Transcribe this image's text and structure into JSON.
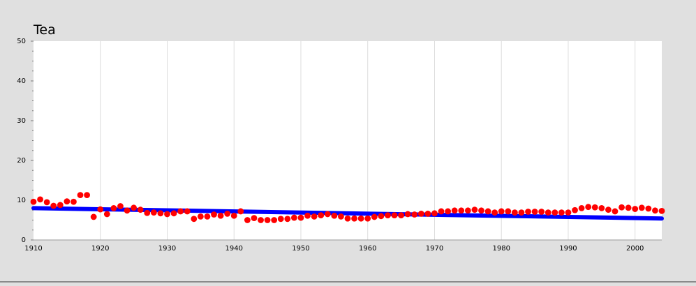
{
  "chart_data": {
    "type": "scatter",
    "title": "Tea",
    "xlabel": "",
    "ylabel": "",
    "xlim": [
      1910,
      2004
    ],
    "ylim": [
      0,
      50
    ],
    "x_ticks": [
      1910,
      1920,
      1930,
      1940,
      1950,
      1960,
      1970,
      1980,
      1990,
      2000
    ],
    "y_ticks": [
      0,
      10,
      20,
      30,
      40,
      50
    ],
    "grid": "vertical",
    "legend": "none",
    "colors": {
      "points": "#ff0000",
      "trend": "#0000ff",
      "plot_bg": "#ffffff",
      "page_bg": "#e0e0e0",
      "grid": "#dcdcdc"
    },
    "series": [
      {
        "kind": "points",
        "x": [
          1910,
          1911,
          1912,
          1913,
          1914,
          1915,
          1916,
          1917,
          1918,
          1919,
          1920,
          1921,
          1922,
          1923,
          1924,
          1925,
          1926,
          1927,
          1928,
          1929,
          1930,
          1931,
          1932,
          1933,
          1934,
          1935,
          1936,
          1937,
          1938,
          1939,
          1940,
          1941,
          1942,
          1943,
          1944,
          1945,
          1946,
          1947,
          1948,
          1949,
          1950,
          1951,
          1952,
          1953,
          1954,
          1955,
          1956,
          1957,
          1958,
          1959,
          1960,
          1961,
          1962,
          1963,
          1964,
          1965,
          1966,
          1967,
          1968,
          1969,
          1970,
          1971,
          1972,
          1973,
          1974,
          1975,
          1976,
          1977,
          1978,
          1979,
          1980,
          1981,
          1982,
          1983,
          1984,
          1985,
          1986,
          1987,
          1988,
          1989,
          1990,
          1991,
          1992,
          1993,
          1994,
          1995,
          1996,
          1997,
          1998,
          1999,
          2000,
          2001,
          2002,
          2003,
          2004
        ],
        "y": [
          9.6,
          10.2,
          9.5,
          8.6,
          8.8,
          9.7,
          9.6,
          11.3,
          11.3,
          5.8,
          7.7,
          6.5,
          8.0,
          8.5,
          7.4,
          8.1,
          7.6,
          6.8,
          6.9,
          6.7,
          6.5,
          6.7,
          7.2,
          7.2,
          5.3,
          5.9,
          5.9,
          6.4,
          6.1,
          6.6,
          6.1,
          7.2,
          5.0,
          5.5,
          5.0,
          5.0,
          5.0,
          5.3,
          5.3,
          5.6,
          5.6,
          6.1,
          5.9,
          6.2,
          6.5,
          6.1,
          5.9,
          5.4,
          5.4,
          5.4,
          5.4,
          5.8,
          6.0,
          6.2,
          6.2,
          6.2,
          6.5,
          6.4,
          6.6,
          6.6,
          6.7,
          7.2,
          7.2,
          7.4,
          7.4,
          7.4,
          7.6,
          7.4,
          7.2,
          6.9,
          7.2,
          7.2,
          6.9,
          6.9,
          7.1,
          7.1,
          7.1,
          6.9,
          6.9,
          6.9,
          6.9,
          7.5,
          8.0,
          8.3,
          8.2,
          8.0,
          7.6,
          7.2,
          8.2,
          8.1,
          7.8,
          8.1,
          7.9,
          7.4,
          7.3
        ]
      },
      {
        "kind": "trend",
        "x": [
          1910,
          2004
        ],
        "y": [
          8.0,
          5.4
        ]
      }
    ]
  }
}
